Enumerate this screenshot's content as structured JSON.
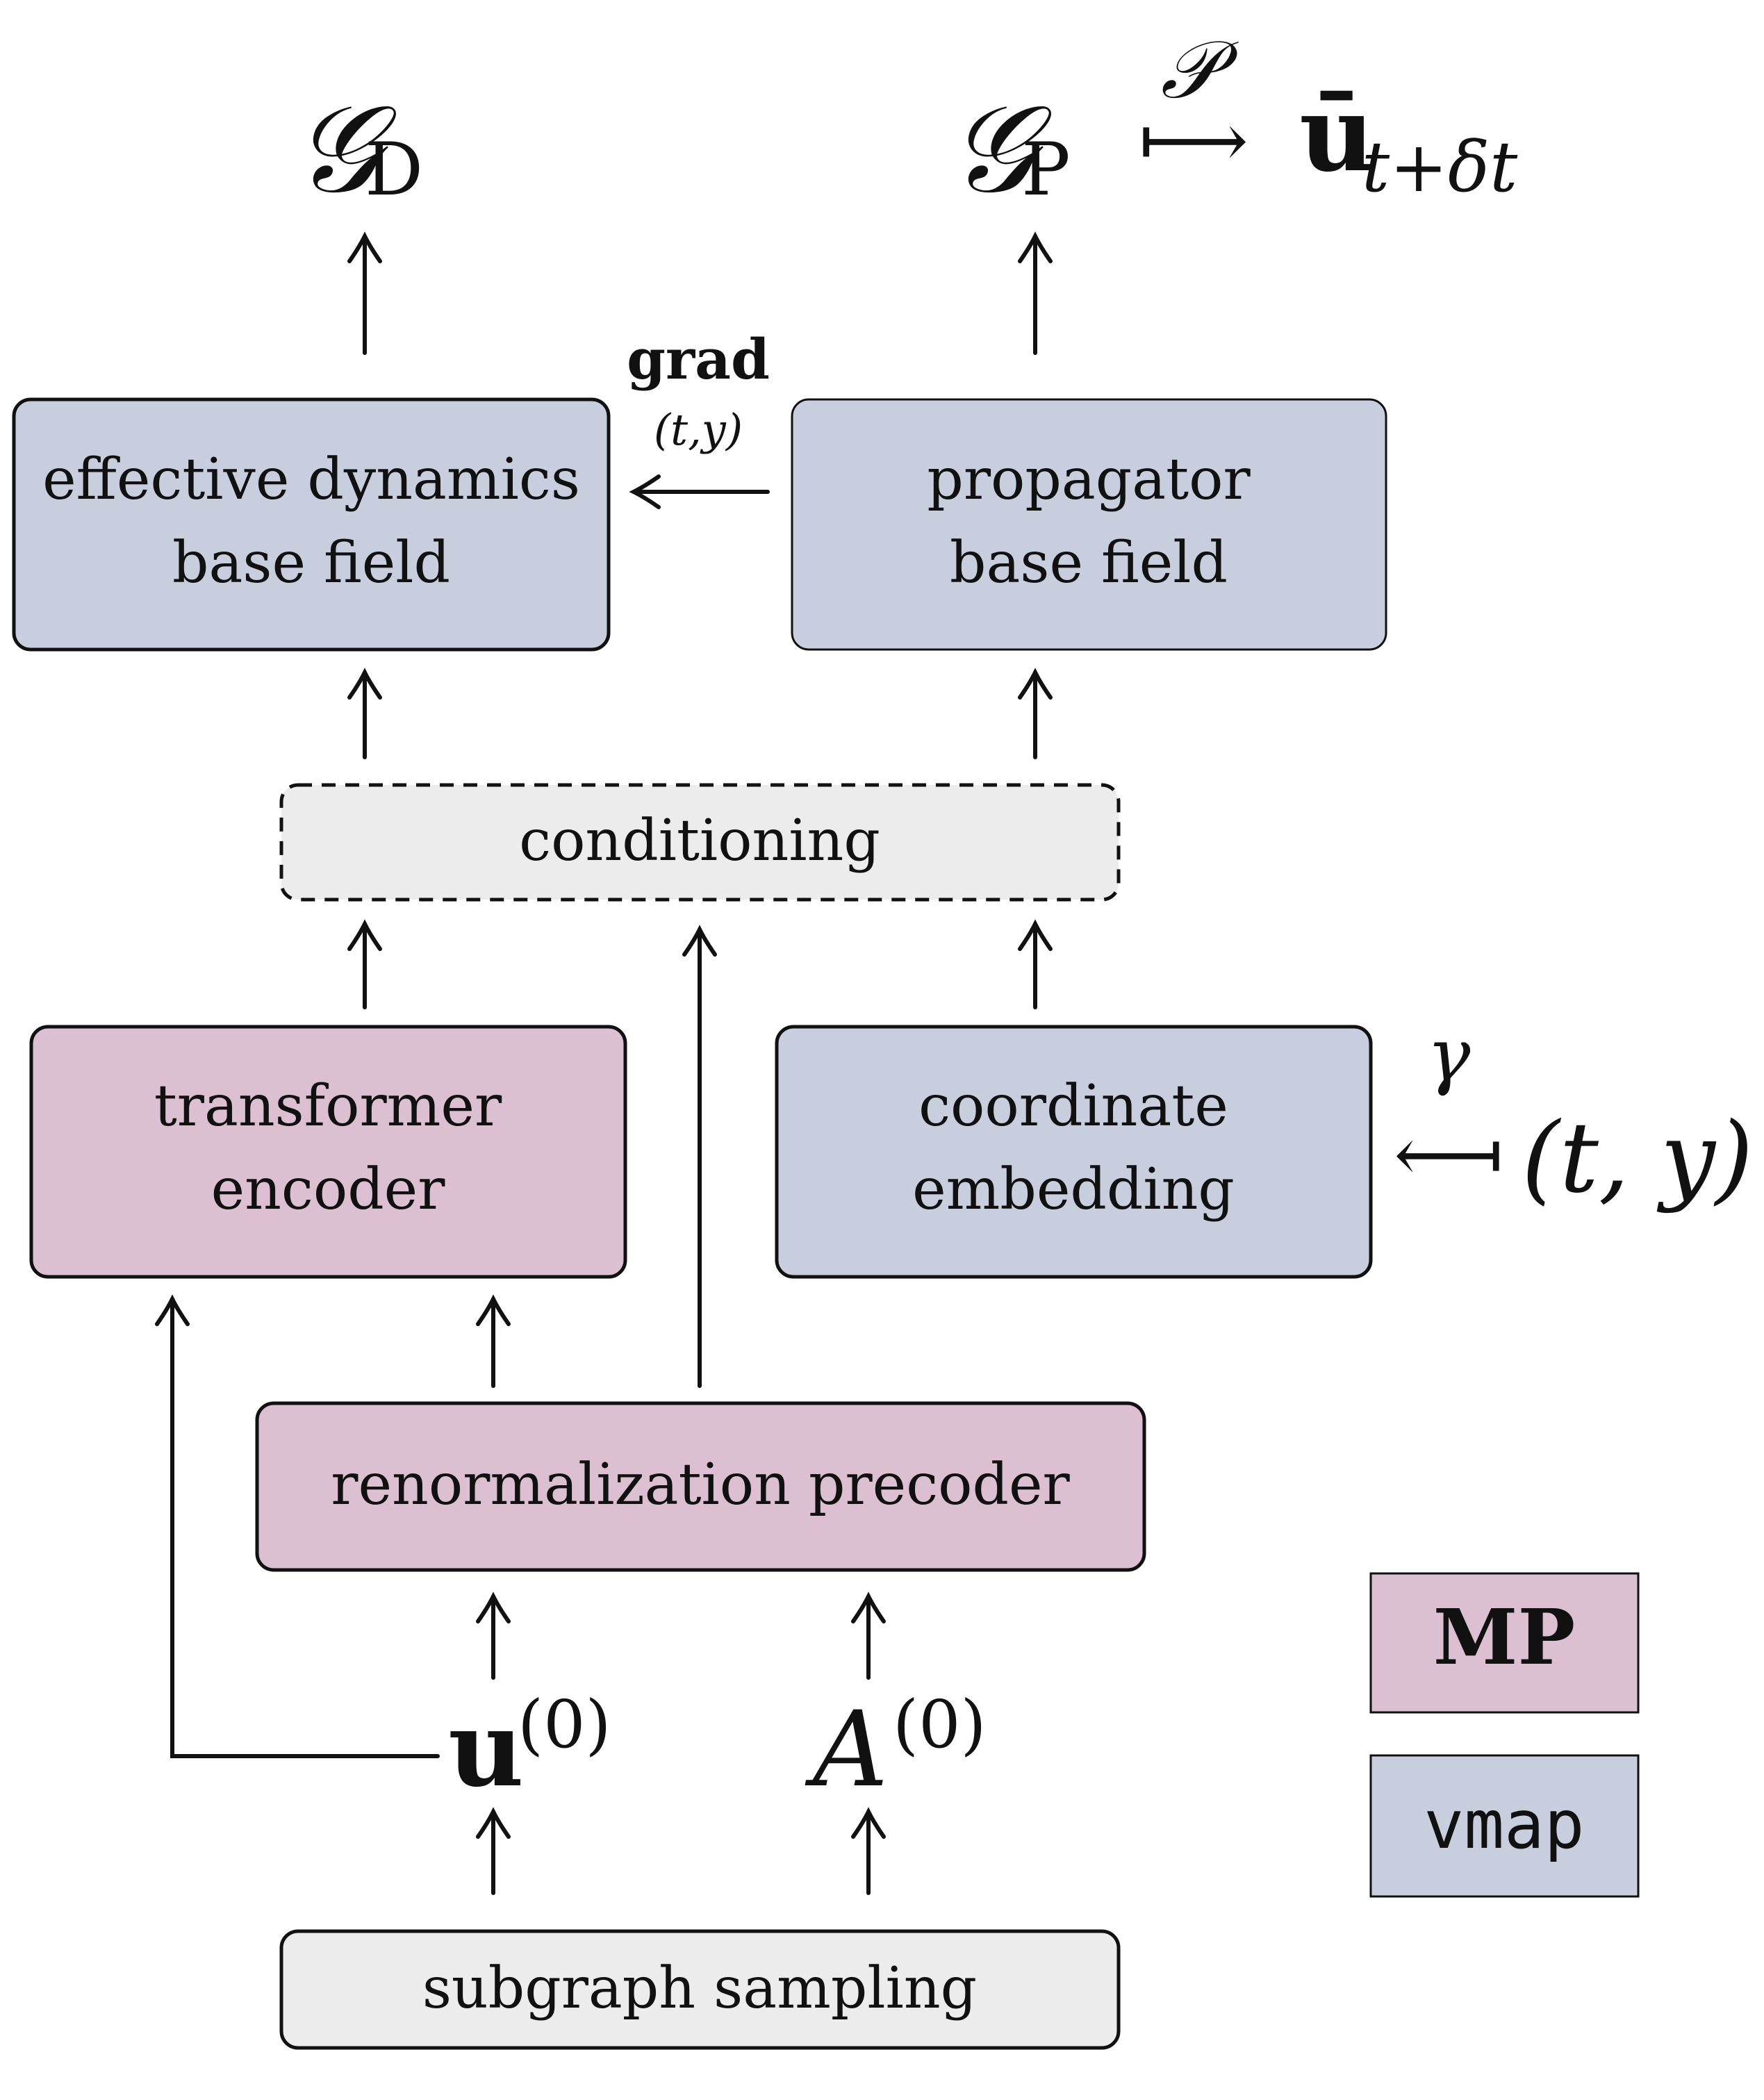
{
  "colors": {
    "mp": "#dcc0d2",
    "vmap": "#c8cedd",
    "neutral": "#ececec",
    "stroke": "#111111"
  },
  "boxes": {
    "effective_dynamics": {
      "line1": "effective dynamics",
      "line2": "base field"
    },
    "propagator": {
      "line1": "propagator",
      "line2": "base field"
    },
    "conditioning": {
      "label": "conditioning"
    },
    "transformer": {
      "line1": "transformer",
      "line2": "encoder"
    },
    "coordinate": {
      "line1": "coordinate",
      "line2": "embedding"
    },
    "precoder": {
      "label": "renormalization precoder"
    },
    "sampling": {
      "label": "subgraph sampling"
    }
  },
  "labels": {
    "g_d_main": "𝒢",
    "g_d_sub": "D",
    "g_p_main": "𝒢",
    "g_p_sub": "P",
    "script_p": "𝒫",
    "maps_to": "⟼",
    "u_bar": "ū",
    "u_bar_sub": "t+δt",
    "grad": "grad",
    "grad_args": "(t,y)",
    "gamma": "γ",
    "maps_from": "⟻",
    "ty": "(t, y)",
    "u0_main": "u",
    "u0_sup": "(0)",
    "a0_main": "A",
    "a0_sup": "(0)"
  },
  "legend": {
    "mp": "MP",
    "vmap": "vmap"
  },
  "icons": {
    "arrows": "up-arrow-icon"
  }
}
